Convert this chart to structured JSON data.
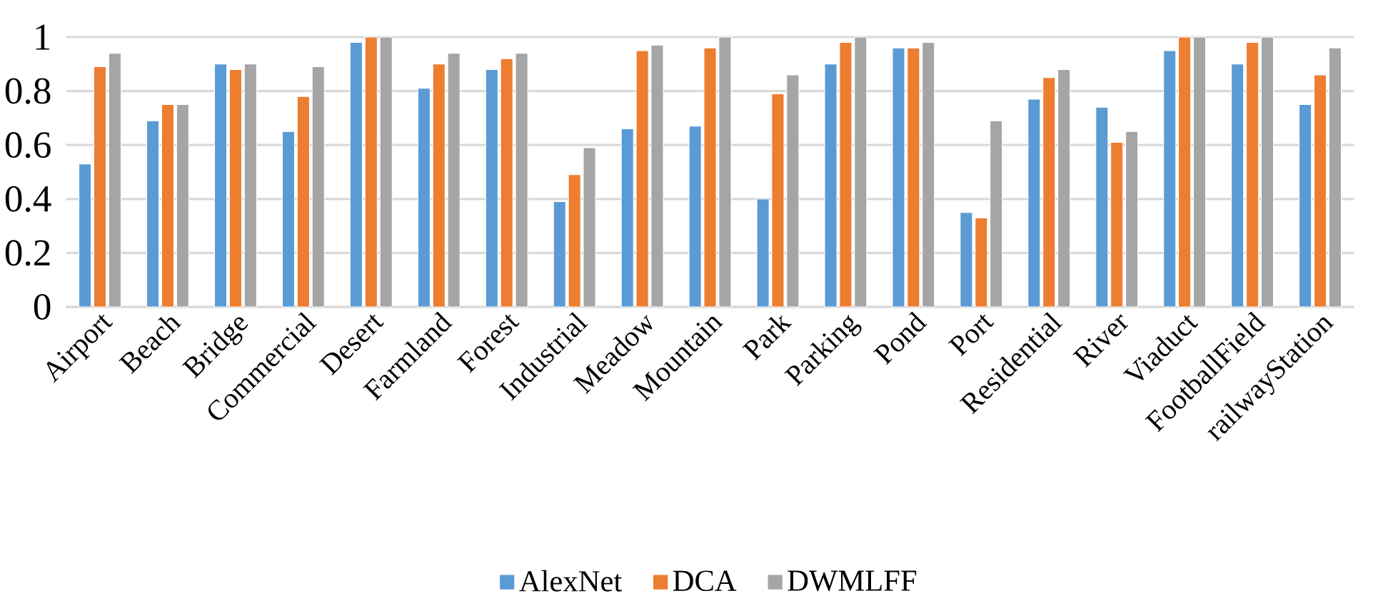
{
  "chart_data": {
    "type": "bar",
    "categories": [
      "Airport",
      "Beach",
      "Bridge",
      "Commercial",
      "Desert",
      "Farmland",
      "Forest",
      "Industrial",
      "Meadow",
      "Mountain",
      "Park",
      "Parking",
      "Pond",
      "Port",
      "Residential",
      "River",
      "Viaduct",
      "FootballField",
      "railwayStation"
    ],
    "series": [
      {
        "name": "AlexNet",
        "color": "#5b9bd5",
        "values": [
          0.53,
          0.69,
          0.9,
          0.65,
          0.98,
          0.81,
          0.88,
          0.39,
          0.66,
          0.67,
          0.4,
          0.9,
          0.96,
          0.35,
          0.77,
          0.74,
          0.95,
          0.9,
          0.75
        ]
      },
      {
        "name": "DCA",
        "color": "#ed7d31",
        "values": [
          0.89,
          0.75,
          0.88,
          0.78,
          1.0,
          0.9,
          0.92,
          0.49,
          0.95,
          0.96,
          0.79,
          0.98,
          0.96,
          0.33,
          0.85,
          0.61,
          1.0,
          0.98,
          0.86
        ]
      },
      {
        "name": "DWMLFF",
        "color": "#a5a5a5",
        "values": [
          0.94,
          0.75,
          0.9,
          0.89,
          1.0,
          0.94,
          0.94,
          0.59,
          0.97,
          1.0,
          0.86,
          1.0,
          0.98,
          0.69,
          0.88,
          0.65,
          1.0,
          1.0,
          0.96
        ]
      }
    ],
    "ylim": [
      0,
      1
    ],
    "yticks": [
      0,
      0.2,
      0.4,
      0.6,
      0.8,
      1
    ],
    "grid": "y",
    "legend": "bottom"
  }
}
